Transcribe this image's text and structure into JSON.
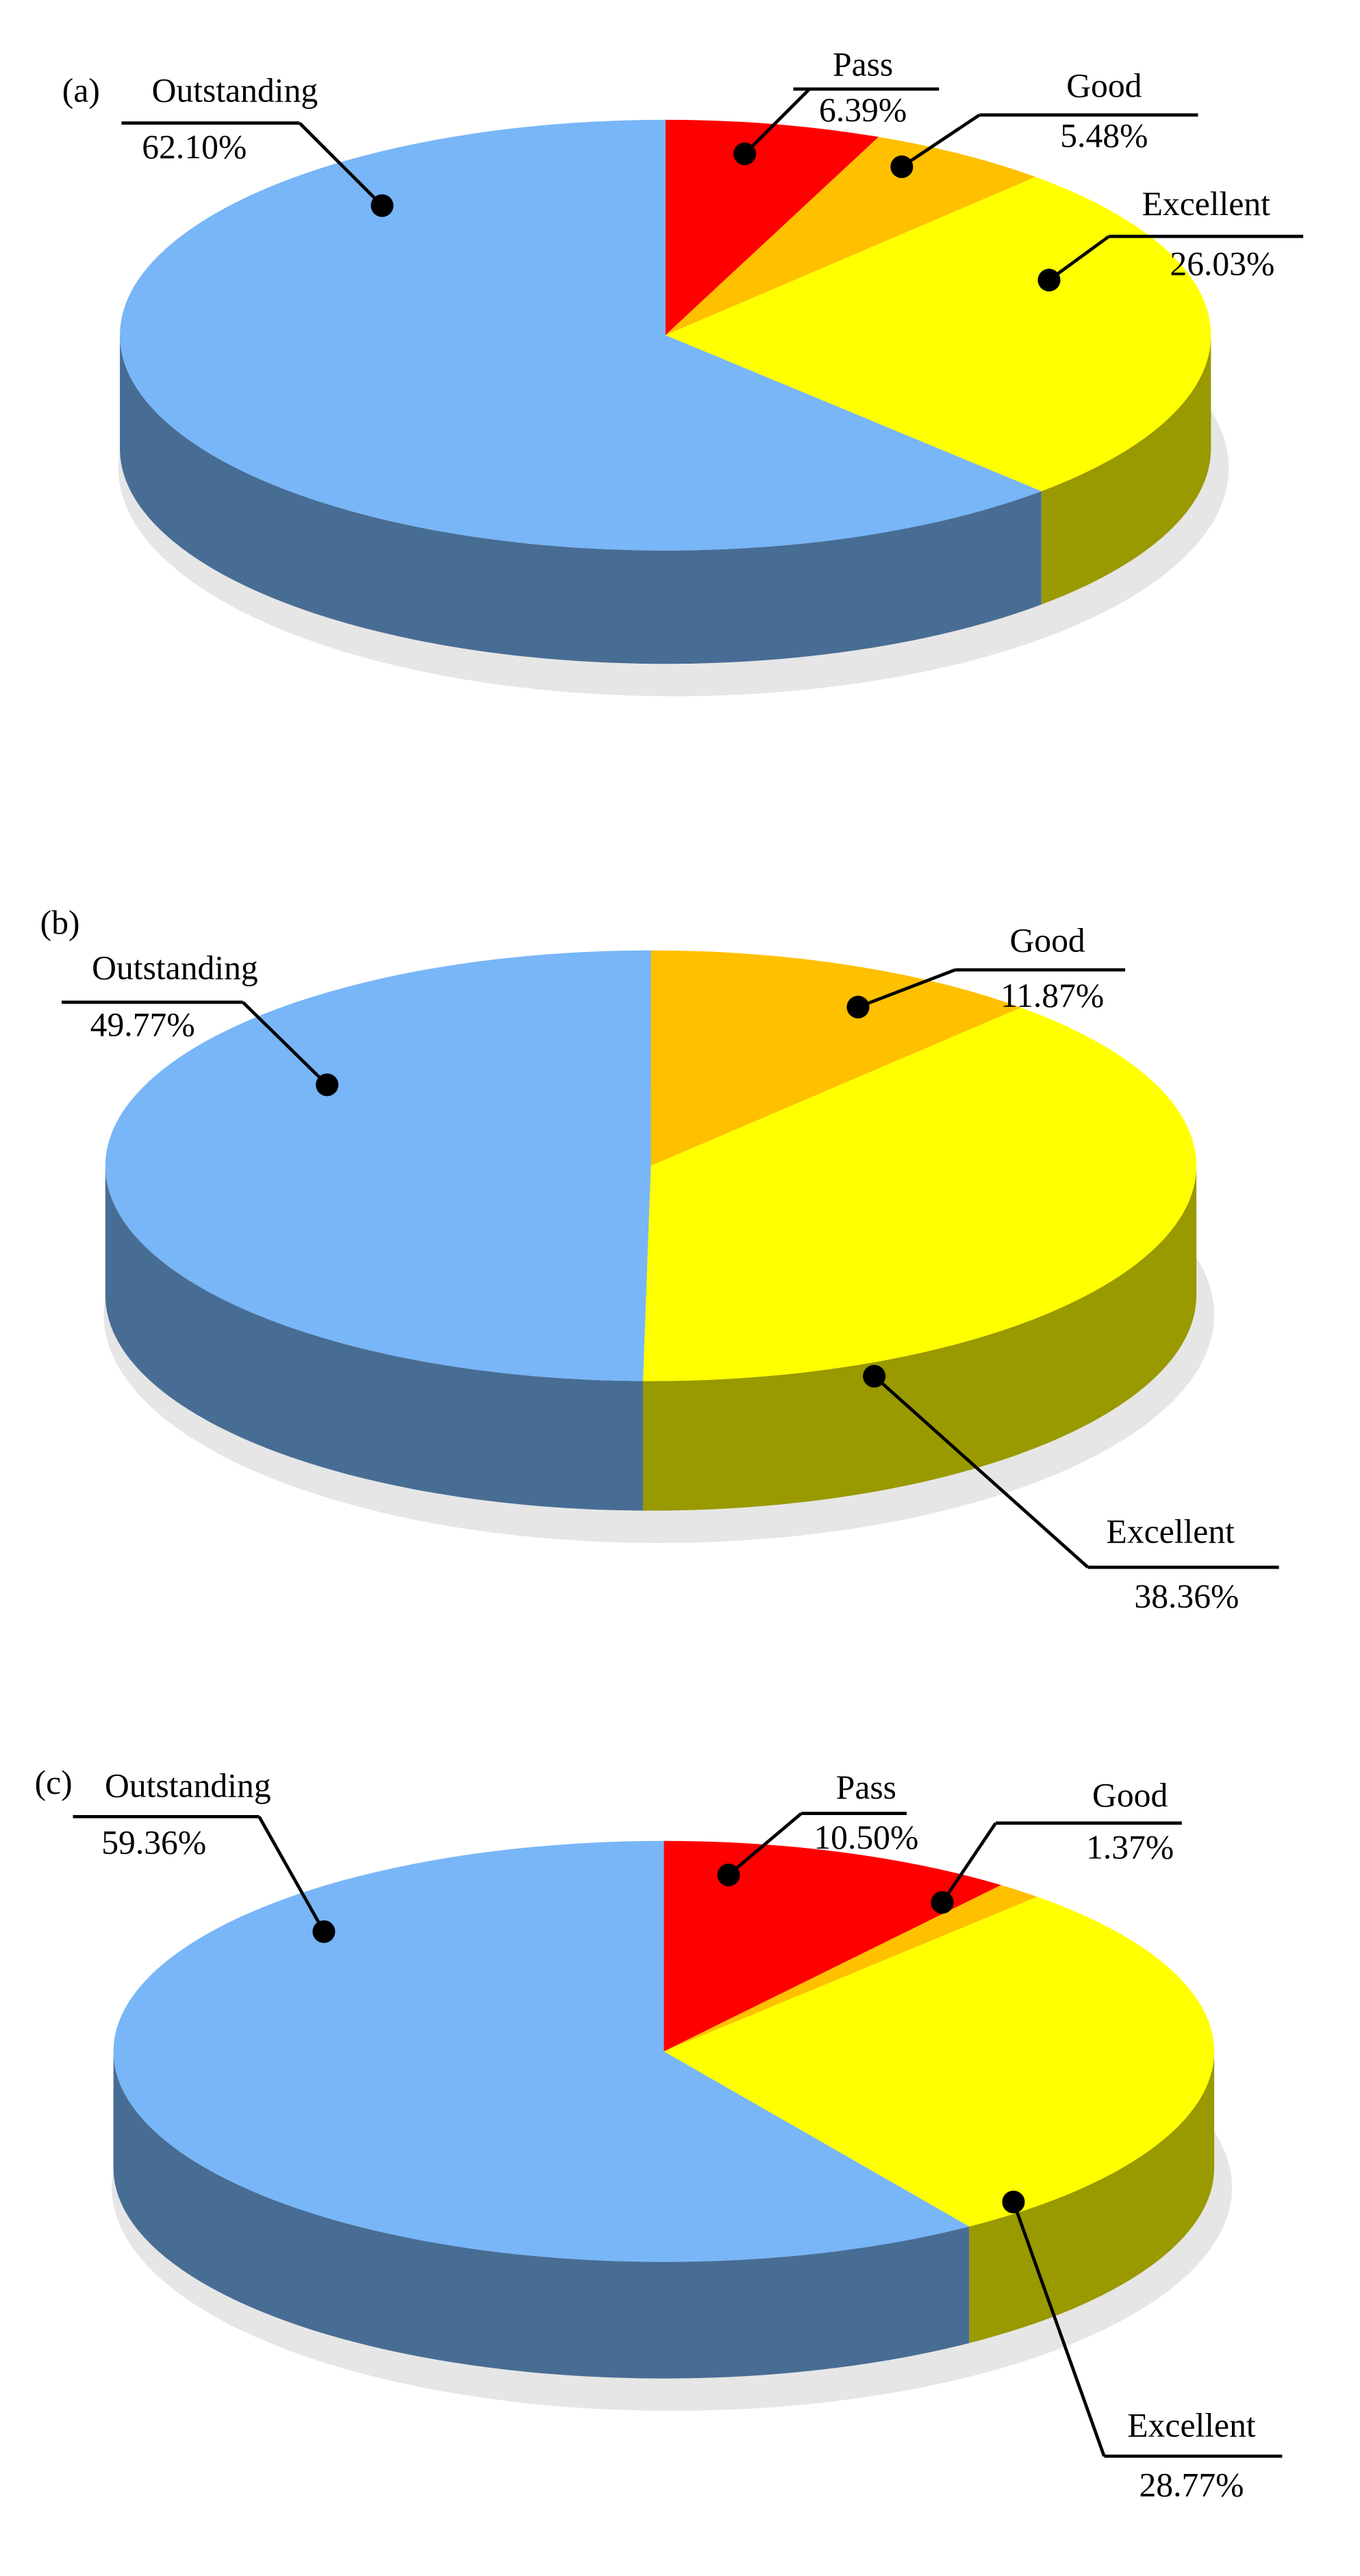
{
  "chart_data": [
    {
      "type": "pie",
      "panel_label": "(a)",
      "categories": [
        "Pass",
        "Good",
        "Excellent",
        "Outstanding"
      ],
      "values": [
        6.39,
        5.48,
        26.03,
        62.1
      ],
      "value_labels": [
        "6.39%",
        "5.48%",
        "26.03%",
        "62.10%"
      ],
      "colors": [
        "#ff0000",
        "#ffc000",
        "#ffff00",
        "#78b6f7"
      ]
    },
    {
      "type": "pie",
      "panel_label": "(b)",
      "categories": [
        "Good",
        "Excellent",
        "Outstanding"
      ],
      "values": [
        11.87,
        38.36,
        49.77
      ],
      "value_labels": [
        "11.87%",
        "38.36%",
        "49.77%"
      ],
      "colors": [
        "#ffc000",
        "#ffff00",
        "#78b6f7"
      ]
    },
    {
      "type": "pie",
      "panel_label": "(c)",
      "categories": [
        "Pass",
        "Good",
        "Excellent",
        "Outstanding"
      ],
      "values": [
        10.5,
        1.37,
        28.77,
        59.36
      ],
      "value_labels": [
        "10.50%",
        "1.37%",
        "28.77%",
        "59.36%"
      ],
      "colors": [
        "#ff0000",
        "#ffc000",
        "#ffff00",
        "#78b6f7"
      ]
    }
  ]
}
